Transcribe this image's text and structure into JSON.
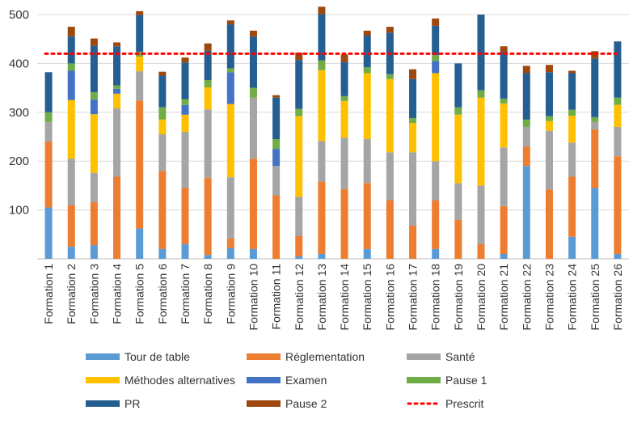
{
  "chart_data": {
    "type": "bar",
    "stacked": true,
    "title": "",
    "xlabel": "",
    "ylabel": "",
    "ylim": [
      0,
      500
    ],
    "yticks": [
      "100",
      "200",
      "300",
      "400",
      "500"
    ],
    "grid": "horizontal",
    "legend_position": "bottom",
    "categories": [
      "Formation 1",
      "Formation 2",
      "Formation 3",
      "Formation 4",
      "Formation 5",
      "Formation 6",
      "Formation 7",
      "Formation 8",
      "Formation 9",
      "Formation 10",
      "Formation 11",
      "Formation 12",
      "Formation 13",
      "Formation 14",
      "Formation 15",
      "Formation 16",
      "Formation 17",
      "Formation 18",
      "Formation 19",
      "Formation 20",
      "Formation 21",
      "Formation 22",
      "Formation 23",
      "Formation 24",
      "Formation 25",
      "Formation 26"
    ],
    "series": [
      {
        "name": "Tour de table",
        "color": "#5b9bd5",
        "values": [
          105,
          25,
          28,
          0,
          62,
          20,
          30,
          8,
          22,
          20,
          0,
          5,
          10,
          0,
          20,
          0,
          0,
          20,
          0,
          0,
          10,
          190,
          0,
          45,
          145,
          10
        ]
      },
      {
        "name": "Réglementation",
        "color": "#ed7d31",
        "values": [
          135,
          85,
          88,
          168,
          262,
          160,
          115,
          158,
          20,
          185,
          130,
          42,
          148,
          143,
          135,
          120,
          68,
          100,
          80,
          30,
          98,
          40,
          142,
          123,
          120,
          200
        ]
      },
      {
        "name": "Santé",
        "color": "#a5a5a5",
        "values": [
          40,
          95,
          60,
          140,
          60,
          75,
          115,
          140,
          125,
          125,
          60,
          80,
          83,
          105,
          90,
          98,
          150,
          80,
          75,
          120,
          120,
          40,
          120,
          70,
          15,
          60
        ]
      },
      {
        "name": "Méthodes alternatives",
        "color": "#ffc000",
        "values": [
          0,
          120,
          120,
          30,
          30,
          30,
          35,
          45,
          150,
          0,
          0,
          165,
          145,
          75,
          135,
          150,
          60,
          180,
          140,
          180,
          90,
          0,
          20,
          55,
          0,
          45
        ]
      },
      {
        "name": "Examen",
        "color": "#4472c4",
        "values": [
          0,
          60,
          30,
          10,
          0,
          0,
          20,
          0,
          65,
          0,
          35,
          0,
          0,
          0,
          0,
          0,
          0,
          25,
          0,
          0,
          0,
          0,
          0,
          0,
          0,
          0
        ]
      },
      {
        "name": "Pause 1",
        "color": "#70ad47",
        "values": [
          20,
          15,
          15,
          7,
          10,
          25,
          12,
          15,
          8,
          20,
          20,
          15,
          20,
          10,
          12,
          10,
          10,
          12,
          15,
          15,
          10,
          15,
          10,
          12,
          10,
          15
        ]
      },
      {
        "name": "PR",
        "color": "#255e91",
        "values": [
          82,
          55,
          95,
          80,
          75,
          65,
          75,
          60,
          90,
          105,
          85,
          100,
          95,
          70,
          65,
          85,
          80,
          60,
          90,
          155,
          95,
          95,
          90,
          75,
          120,
          115
        ]
      },
      {
        "name": "Pause 2",
        "color": "#9e480e",
        "values": [
          0,
          20,
          15,
          8,
          8,
          8,
          10,
          15,
          8,
          12,
          5,
          15,
          15,
          15,
          10,
          12,
          20,
          15,
          0,
          0,
          12,
          15,
          15,
          5,
          15,
          0
        ]
      }
    ],
    "reference_line": {
      "name": "Prescrit",
      "value": 420,
      "color": "#ff0000"
    }
  }
}
